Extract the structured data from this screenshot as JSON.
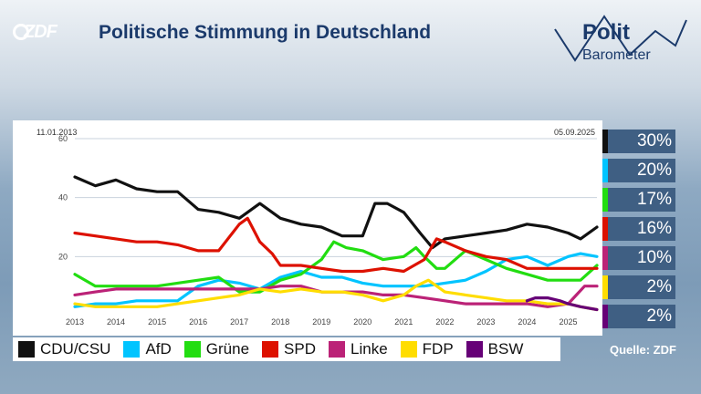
{
  "brand": {
    "logo_text": "ZDF",
    "polit": "Polit",
    "barometer": "Barometer"
  },
  "title": "Politische Stimmung in Deutschland",
  "source": "Quelle: ZDF",
  "chart_data": {
    "type": "line",
    "title": "Politische Stimmung in Deutschland",
    "date_start": "11.01.2013",
    "date_end": "05.09.2025",
    "x_ticks": [
      "2013",
      "2014",
      "2015",
      "2016",
      "2017",
      "2018",
      "2019",
      "2020",
      "2021",
      "2022",
      "2023",
      "2024",
      "2025"
    ],
    "y_ticks": [
      20,
      40,
      60
    ],
    "ylim": [
      0,
      60
    ],
    "xlim": [
      2013.0,
      2025.7
    ],
    "legend_position": "bottom",
    "series": [
      {
        "name": "CDU/CSU",
        "color": "#111111",
        "final_label": "30%",
        "x": [
          2013.0,
          2013.5,
          2014.0,
          2014.5,
          2015.0,
          2015.5,
          2016.0,
          2016.5,
          2017.0,
          2017.5,
          2018.0,
          2018.5,
          2019.0,
          2019.5,
          2020.0,
          2020.3,
          2020.6,
          2021.0,
          2021.4,
          2021.7,
          2022.0,
          2022.5,
          2023.0,
          2023.5,
          2024.0,
          2024.5,
          2025.0,
          2025.3,
          2025.7
        ],
        "y": [
          47,
          44,
          46,
          43,
          42,
          42,
          36,
          35,
          33,
          38,
          33,
          31,
          30,
          27,
          27,
          38,
          38,
          35,
          28,
          23,
          26,
          27,
          28,
          29,
          31,
          30,
          28,
          26,
          30
        ]
      },
      {
        "name": "AfD",
        "color": "#00c4ff",
        "final_label": "20%",
        "x": [
          2013.0,
          2013.5,
          2014.0,
          2014.5,
          2015.0,
          2015.5,
          2016.0,
          2016.5,
          2017.0,
          2017.5,
          2018.0,
          2018.5,
          2019.0,
          2019.5,
          2020.0,
          2020.5,
          2021.0,
          2021.5,
          2022.0,
          2022.5,
          2023.0,
          2023.5,
          2024.0,
          2024.5,
          2025.0,
          2025.3,
          2025.7
        ],
        "y": [
          3,
          4,
          4,
          5,
          5,
          5,
          10,
          12,
          11,
          9,
          13,
          15,
          13,
          13,
          11,
          10,
          10,
          10,
          11,
          12,
          15,
          19,
          20,
          17,
          20,
          21,
          20
        ]
      },
      {
        "name": "Grüne",
        "color": "#22dd11",
        "final_label": "17%",
        "x": [
          2013.0,
          2013.5,
          2014.0,
          2014.5,
          2015.0,
          2015.5,
          2016.0,
          2016.5,
          2017.0,
          2017.5,
          2018.0,
          2018.5,
          2019.0,
          2019.3,
          2019.6,
          2020.0,
          2020.5,
          2021.0,
          2021.3,
          2021.5,
          2021.8,
          2022.0,
          2022.5,
          2023.0,
          2023.5,
          2024.0,
          2024.5,
          2025.0,
          2025.3,
          2025.7
        ],
        "y": [
          14,
          10,
          10,
          10,
          10,
          11,
          12,
          13,
          8,
          8,
          12,
          14,
          19,
          25,
          23,
          22,
          19,
          20,
          23,
          20,
          16,
          16,
          22,
          19,
          16,
          14,
          12,
          12,
          12,
          17
        ]
      },
      {
        "name": "SPD",
        "color": "#dd1100",
        "final_label": "16%",
        "x": [
          2013.0,
          2013.5,
          2014.0,
          2014.5,
          2015.0,
          2015.5,
          2016.0,
          2016.5,
          2017.0,
          2017.2,
          2017.5,
          2017.8,
          2018.0,
          2018.5,
          2019.0,
          2019.5,
          2020.0,
          2020.5,
          2021.0,
          2021.5,
          2021.8,
          2022.0,
          2022.5,
          2023.0,
          2023.5,
          2024.0,
          2024.5,
          2025.0,
          2025.3,
          2025.7
        ],
        "y": [
          28,
          27,
          26,
          25,
          25,
          24,
          22,
          22,
          31,
          33,
          25,
          21,
          17,
          17,
          16,
          15,
          15,
          16,
          15,
          19,
          26,
          25,
          22,
          20,
          19,
          16,
          16,
          16,
          16,
          16
        ]
      },
      {
        "name": "Linke",
        "color": "#bb2277",
        "final_label": "10%",
        "x": [
          2013.0,
          2013.5,
          2014.0,
          2014.5,
          2015.0,
          2015.5,
          2016.0,
          2016.5,
          2017.0,
          2017.5,
          2018.0,
          2018.5,
          2019.0,
          2019.5,
          2020.0,
          2020.5,
          2021.0,
          2021.5,
          2022.0,
          2022.5,
          2023.0,
          2023.5,
          2024.0,
          2024.5,
          2025.0,
          2025.2,
          2025.4,
          2025.7
        ],
        "y": [
          7,
          8,
          9,
          9,
          9,
          9,
          9,
          9,
          9,
          9,
          10,
          10,
          8,
          8,
          8,
          7,
          7,
          6,
          5,
          4,
          4,
          4,
          4,
          3,
          4,
          7,
          10,
          10
        ]
      },
      {
        "name": "FDP",
        "color": "#ffdd00",
        "final_label": "2%",
        "x": [
          2013.0,
          2013.5,
          2014.0,
          2014.5,
          2015.0,
          2015.5,
          2016.0,
          2016.5,
          2017.0,
          2017.5,
          2018.0,
          2018.5,
          2019.0,
          2019.5,
          2020.0,
          2020.5,
          2021.0,
          2021.3,
          2021.6,
          2022.0,
          2022.5,
          2023.0,
          2023.5,
          2024.0,
          2024.5,
          2025.0,
          2025.3,
          2025.7
        ],
        "y": [
          4,
          3,
          3,
          3,
          3,
          4,
          5,
          6,
          7,
          9,
          8,
          9,
          8,
          8,
          7,
          5,
          7,
          10,
          12,
          8,
          7,
          6,
          5,
          5,
          4,
          4,
          3,
          2
        ]
      },
      {
        "name": "BSW",
        "color": "#660077",
        "final_label": "2%",
        "x": [
          2024.0,
          2024.2,
          2024.5,
          2024.8,
          2025.0,
          2025.3,
          2025.7
        ],
        "y": [
          5,
          6,
          6,
          5,
          4,
          3,
          2
        ]
      }
    ]
  }
}
